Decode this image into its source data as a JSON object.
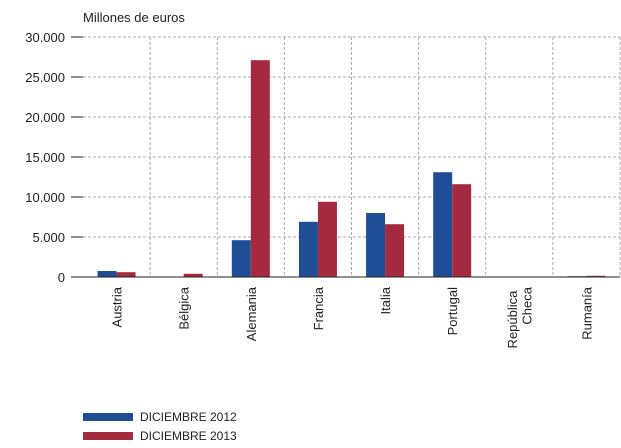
{
  "chart_data": {
    "type": "bar",
    "ylabel": "Millones de euros",
    "categories": [
      "Austria",
      "Bélgica",
      "Alemania",
      "Francia",
      "Italia",
      "Portugal",
      "República Checa",
      "Rumanía"
    ],
    "series": [
      {
        "name": "DICIEMBRE 2012",
        "color": "#1f4e96",
        "values": [
          750,
          0,
          4600,
          6900,
          8000,
          13100,
          50,
          100
        ]
      },
      {
        "name": "DICIEMBRE 2013",
        "color": "#a52a3f",
        "values": [
          600,
          400,
          27100,
          9400,
          6600,
          11600,
          50,
          150
        ]
      }
    ],
    "ylim": [
      0,
      30000
    ],
    "yticks": [
      0,
      {
        "value": 5000,
        "label": "5.000"
      },
      {
        "value": 10000,
        "label": "10.000"
      },
      {
        "value": 15000,
        "label": "15.000"
      },
      {
        "value": 20000,
        "label": "20.000"
      },
      {
        "value": 25000,
        "label": "25.000"
      },
      {
        "value": 30000,
        "label": "30.000"
      }
    ],
    "grid": true
  }
}
